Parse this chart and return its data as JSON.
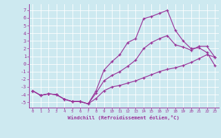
{
  "xlabel": "Windchill (Refroidissement éolien,°C)",
  "background_color": "#cde9f0",
  "line_color": "#993399",
  "grid_color": "#ffffff",
  "x_ticks": [
    0,
    1,
    2,
    3,
    4,
    5,
    6,
    7,
    8,
    9,
    10,
    11,
    12,
    13,
    14,
    15,
    16,
    17,
    18,
    19,
    20,
    21,
    22,
    23
  ],
  "y_ticks": [
    -5,
    -4,
    -3,
    -2,
    -1,
    0,
    1,
    2,
    3,
    4,
    5,
    6,
    7
  ],
  "xlim": [
    -0.5,
    23.5
  ],
  "ylim": [
    -5.7,
    7.8
  ],
  "curve_upper": [
    -3.5,
    -4.1,
    -3.9,
    -4.0,
    -4.6,
    -4.9,
    -4.9,
    -5.2,
    -3.5,
    -0.8,
    0.3,
    1.2,
    2.8,
    3.3,
    5.9,
    6.2,
    6.6,
    7.0,
    4.4,
    3.0,
    2.0,
    2.1,
    1.5,
    -0.2
  ],
  "curve_mid": [
    -3.5,
    -4.1,
    -3.9,
    -4.0,
    -4.6,
    -4.9,
    -4.9,
    -5.2,
    -3.8,
    -2.2,
    -1.5,
    -1.0,
    -0.3,
    0.5,
    2.0,
    2.8,
    3.3,
    3.7,
    2.5,
    2.2,
    1.8,
    2.3,
    2.3,
    0.9
  ],
  "curve_lower": [
    -3.5,
    -4.1,
    -3.9,
    -4.0,
    -4.6,
    -4.9,
    -4.9,
    -5.2,
    -4.5,
    -3.5,
    -3.0,
    -2.8,
    -2.5,
    -2.2,
    -1.8,
    -1.4,
    -1.0,
    -0.7,
    -0.5,
    -0.2,
    0.2,
    0.7,
    1.2,
    0.9
  ]
}
